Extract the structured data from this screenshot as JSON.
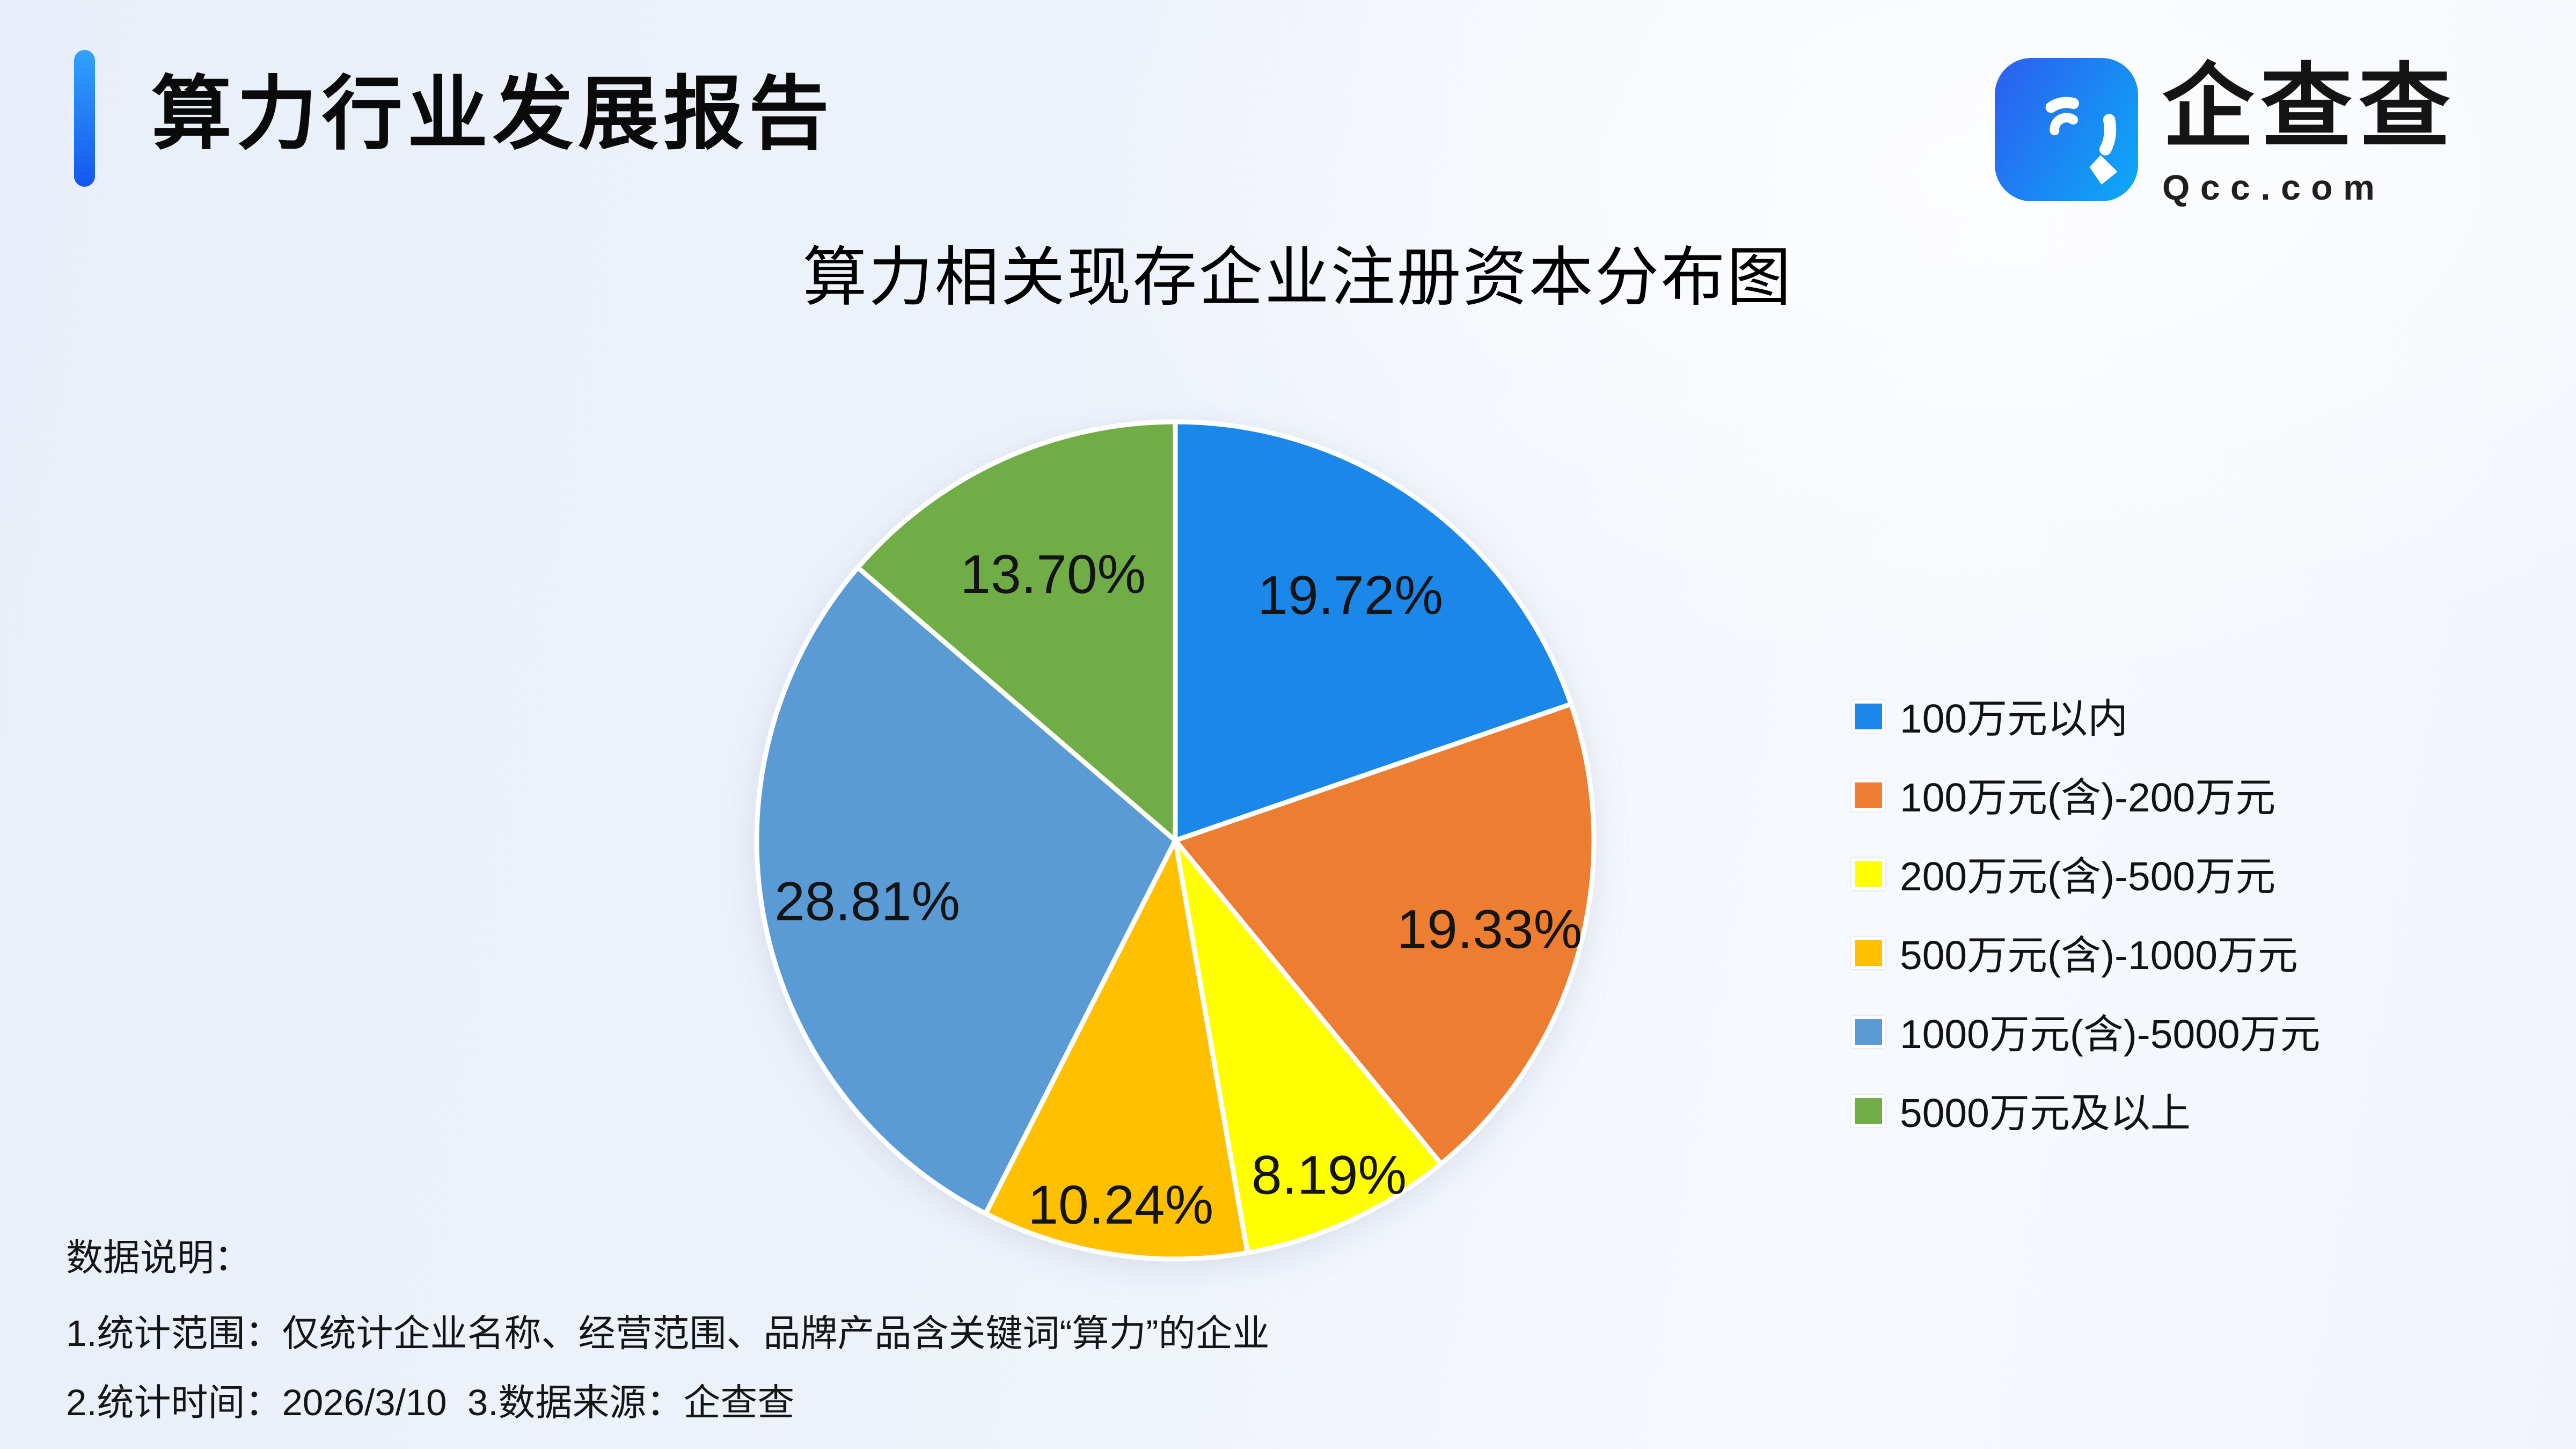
{
  "header": {
    "title": "算力行业发展报告",
    "accent_colors": [
      "#31A2FC",
      "#1557EE"
    ]
  },
  "logo": {
    "company": "企查查",
    "domain": "Qcc.com",
    "icon_colors": [
      "#2A63F0",
      "#0EA5F7"
    ]
  },
  "chart_data": {
    "type": "pie",
    "title": "算力相关现存企业注册资本分布图",
    "categories": [
      "100万元以内",
      "100万元(含)-200万元",
      "200万元(含)-500万元",
      "500万元(含)-1000万元",
      "1000万元(含)-5000万元",
      "5000万元及以上"
    ],
    "values": [
      19.72,
      19.33,
      8.19,
      10.24,
      28.81,
      13.7
    ],
    "labels": [
      "19.72%",
      "19.33%",
      "8.19%",
      "10.24%",
      "28.81%",
      "13.70%"
    ],
    "colors": [
      "#1B87E9",
      "#ED7D31",
      "#FFFF00",
      "#FFC000",
      "#5B9BD5",
      "#70AD47"
    ],
    "unit": "%",
    "start_angle": 0,
    "direction": "clockwise",
    "legend_position": "right",
    "slice_border_color": "#FFFFFF",
    "label_color": "#141414",
    "label_radius": [
      0.72,
      0.78,
      0.88,
      0.88,
      0.75,
      0.7
    ]
  },
  "notes": {
    "heading": "数据说明：",
    "lines": [
      "1.统计范围：仅统计企业名称、经营范围、品牌产品含关键词“算力”的企业",
      "2.统计时间：2026/3/10  3.数据来源：企查查"
    ]
  }
}
